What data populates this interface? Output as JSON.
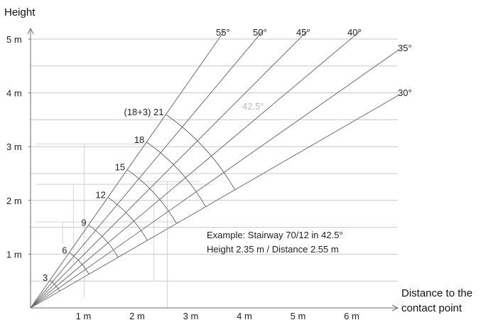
{
  "y_axis_title": "Height",
  "x_axis_title_line1": "Distance to the",
  "x_axis_title_line2": "contact point",
  "y_ticks": [
    {
      "value": 1,
      "label": "1 m"
    },
    {
      "value": 2,
      "label": "2 m"
    },
    {
      "value": 3,
      "label": "3 m"
    },
    {
      "value": 4,
      "label": "4 m"
    },
    {
      "value": 5,
      "label": "5 m"
    }
  ],
  "x_ticks": [
    {
      "value": 1,
      "label": "1 m"
    },
    {
      "value": 2,
      "label": "2 m"
    },
    {
      "value": 3,
      "label": "3 m"
    },
    {
      "value": 4,
      "label": "4 m"
    },
    {
      "value": 5,
      "label": "5 m"
    },
    {
      "value": 6,
      "label": "6 m"
    }
  ],
  "angle_lines": [
    {
      "deg": 55,
      "label": "55°"
    },
    {
      "deg": 50,
      "label": "50°"
    },
    {
      "deg": 45,
      "label": "45°"
    },
    {
      "deg": 40,
      "label": "40°"
    },
    {
      "deg": 35,
      "label": "35°"
    },
    {
      "deg": 30,
      "label": "30°"
    }
  ],
  "step_arcs": [
    {
      "steps": 3,
      "label": "3"
    },
    {
      "steps": 6,
      "label": "6"
    },
    {
      "steps": 9,
      "label": "9"
    },
    {
      "steps": 12,
      "label": "12"
    },
    {
      "steps": 15,
      "label": "15"
    },
    {
      "steps": 18,
      "label": "18"
    },
    {
      "steps": 21,
      "label": "(18+3) 21"
    }
  ],
  "highlight": {
    "deg": 42.5,
    "label": "42.5°",
    "color": "#bdbdbd"
  },
  "example": {
    "line1": "Example: Stairway 70/12 in 42.5°",
    "line2": "Height 2.35 m / Distance 2.55 m",
    "height_m": 2.35,
    "distance_m": 2.55,
    "steps": 12
  },
  "colors": {
    "grid": "#c8c8c8",
    "line": "#6e6e6e",
    "text": "#222222",
    "faint": "#d6d6d6"
  }
}
